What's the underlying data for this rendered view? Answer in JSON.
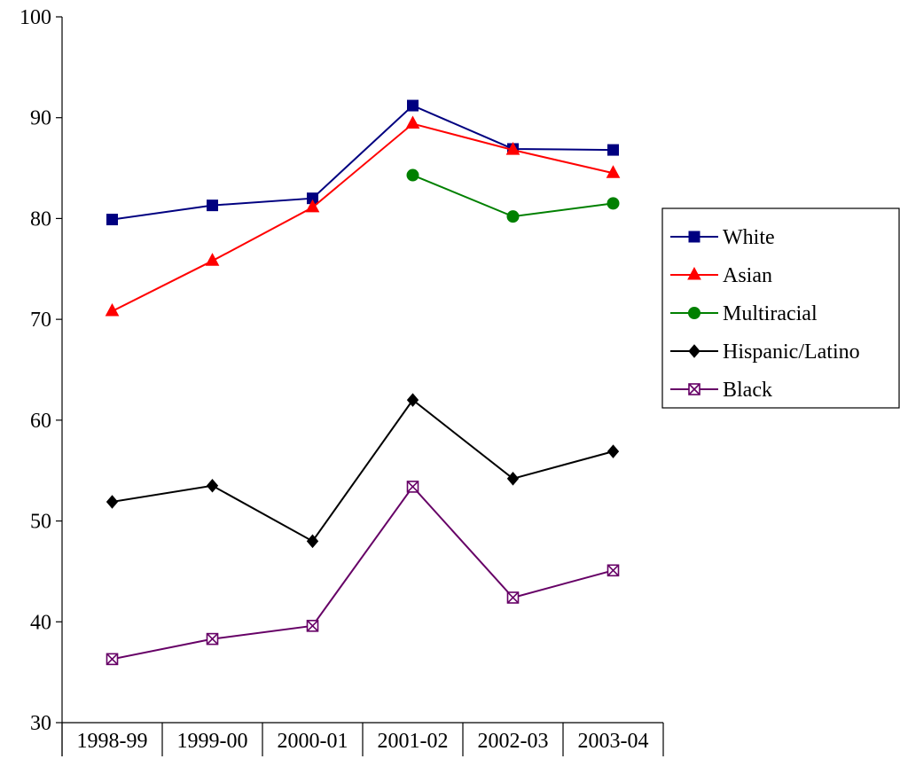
{
  "chart_data": {
    "type": "line",
    "title": "",
    "xlabel": "",
    "ylabel": "",
    "categories": [
      "1998-99",
      "1999-00",
      "2000-01",
      "2001-02",
      "2002-03",
      "2003-04"
    ],
    "ylim": [
      30,
      100
    ],
    "yticks": [
      30,
      40,
      50,
      60,
      70,
      80,
      90,
      100
    ],
    "grid": false,
    "legend_position": "right",
    "series": [
      {
        "name": "White",
        "color": "#000080",
        "marker": "square",
        "values": [
          79.9,
          81.3,
          82.0,
          91.2,
          86.9,
          86.8
        ]
      },
      {
        "name": "Asian",
        "color": "#ff0000",
        "marker": "triangle",
        "values": [
          70.8,
          75.8,
          81.1,
          89.4,
          86.8,
          84.5
        ]
      },
      {
        "name": "Multiracial",
        "color": "#008000",
        "marker": "circle",
        "values": [
          null,
          null,
          null,
          84.3,
          80.2,
          81.5
        ]
      },
      {
        "name": "Hispanic/Latino",
        "color": "#000000",
        "marker": "diamond",
        "values": [
          51.9,
          53.5,
          48.0,
          62.0,
          54.2,
          56.9
        ]
      },
      {
        "name": "Black",
        "color": "#660066",
        "marker": "x-square",
        "values": [
          36.3,
          38.3,
          39.6,
          53.4,
          42.4,
          45.1
        ]
      }
    ]
  }
}
